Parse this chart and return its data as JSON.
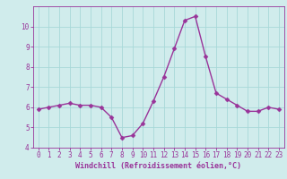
{
  "x": [
    0,
    1,
    2,
    3,
    4,
    5,
    6,
    7,
    8,
    9,
    10,
    11,
    12,
    13,
    14,
    15,
    16,
    17,
    18,
    19,
    20,
    21,
    22,
    23
  ],
  "y": [
    5.9,
    6.0,
    6.1,
    6.2,
    6.1,
    6.1,
    6.0,
    5.5,
    4.5,
    4.6,
    5.2,
    6.3,
    7.5,
    8.9,
    10.3,
    10.5,
    8.5,
    6.7,
    6.4,
    6.1,
    5.8,
    5.8,
    6.0,
    5.9
  ],
  "line_color": "#993399",
  "marker_color": "#993399",
  "bg_color": "#d0ecec",
  "grid_color": "#a8d8d8",
  "xlabel": "Windchill (Refroidissement éolien,°C)",
  "xlabel_color": "#993399",
  "tick_color": "#993399",
  "spine_color": "#993399",
  "ylim": [
    4,
    11
  ],
  "xlim": [
    -0.5,
    23.5
  ],
  "yticks": [
    4,
    5,
    6,
    7,
    8,
    9,
    10
  ],
  "xticks": [
    0,
    1,
    2,
    3,
    4,
    5,
    6,
    7,
    8,
    9,
    10,
    11,
    12,
    13,
    14,
    15,
    16,
    17,
    18,
    19,
    20,
    21,
    22,
    23
  ],
  "font_family": "monospace",
  "tick_fontsize": 5.5,
  "xlabel_fontsize": 6.0,
  "linewidth": 1.0,
  "markersize": 2.5
}
